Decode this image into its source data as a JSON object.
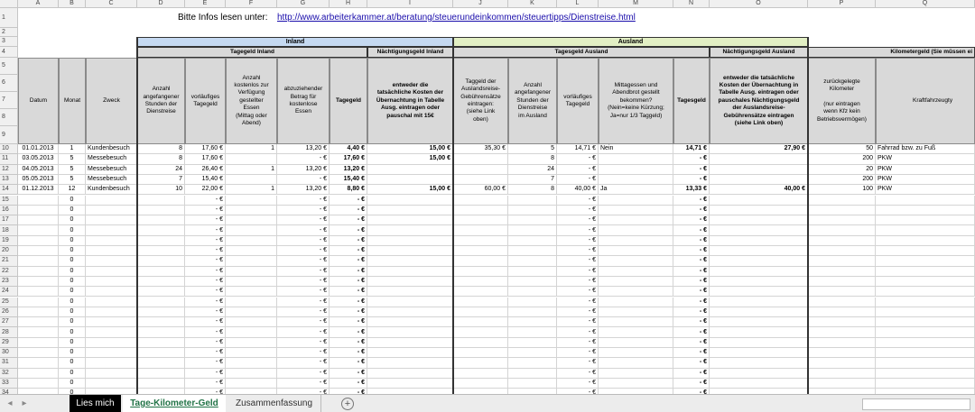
{
  "column_letters": [
    "A",
    "B",
    "C",
    "D",
    "E",
    "F",
    "G",
    "H",
    "I",
    "J",
    "K",
    "L",
    "M",
    "N",
    "O",
    "P",
    "Q"
  ],
  "row_numbers": [
    1,
    2,
    3,
    4,
    5,
    6,
    7,
    8,
    9,
    10,
    11,
    12,
    13,
    14,
    15,
    16,
    17,
    18,
    19,
    20,
    21,
    22,
    23,
    24,
    25,
    26,
    27,
    28,
    29,
    30,
    31,
    32,
    33,
    34
  ],
  "info": {
    "label": "Bitte Infos lesen unter:",
    "url": "http://www.arbeiterkammer.at/beratung/steuerundeinkommen/steuertipps/Dienstreise.html"
  },
  "groups": [
    "Inland",
    "Ausland"
  ],
  "subgroups": [
    "Tagegeld Inland",
    "Nächtigungsgeld Inland",
    "Tagesgeld Ausland",
    "Nächtigungsgeld Ausland",
    "Kilometergeld (Sie müssen ei"
  ],
  "columns": [
    "Datum",
    "Monat",
    "Zweck",
    "Anzahl\nangefangener\nStunden der\nDienstreise",
    "vorläufiges\nTagegeld",
    "Anzahl\nkostenlos zur\nVerfügung\ngestellter\nEssen\n(Mittag oder\nAbend)",
    "abzuziehender\nBetrag für\nkostenlose\nEssen",
    "Tagegeld",
    "entweder die\ntatsächliche Kosten der\nÜbernachtung in Tabelle\nAusg. eintragen oder\npauschal mit 15€",
    "Taggeld der\nAuslandsreise-\nGebührensätze\neintragen:\n(siehe Link\noben)",
    "Anzahl\nangefangener\nStunden der\nDienstreise\nim Ausland",
    "vorläufiges\nTagegeld",
    "Mittagessen und\nAbendbrot gestellt\nbekommen?\n(Nein=keine Kürzung;\nJa=nur 1/3 Taggeld)",
    "Tagesgeld",
    "entweder die tatsächliche\nKosten der Übernachtung in\nTabelle Ausg. eintragen oder\npauschales Nächtigungsgeld\nder Auslandsreise-\nGebührensätze eintragen\n(siehe Link oben)",
    "zurückgelegte\nKilometer\n\n(nur eintragen\nwenn Kfz kein\nBetriebsvermögen)",
    "Kraftfahrzeugty"
  ],
  "rows": [
    [
      "01.01.2013",
      "1",
      "Kundenbesuch",
      "8",
      "17,60 €",
      "1",
      "13,20 €",
      "4,40 €",
      "15,00 €",
      "35,30 €",
      "5",
      "14,71 €",
      "Nein",
      "14,71 €",
      "27,90 €",
      "50",
      "Fahrrad bzw. zu Fuß"
    ],
    [
      "03.05.2013",
      "5",
      "Messebesuch",
      "8",
      "17,60 €",
      "",
      "- €",
      "17,60 €",
      "15,00 €",
      "",
      "8",
      "- €",
      "",
      "- €",
      "",
      "200",
      "PKW"
    ],
    [
      "04.05.2013",
      "5",
      "Messebesuch",
      "24",
      "26,40 €",
      "1",
      "13,20 €",
      "13,20 €",
      "",
      "",
      "24",
      "- €",
      "",
      "- €",
      "",
      "20",
      "PKW"
    ],
    [
      "05.05.2013",
      "5",
      "Messebesuch",
      "7",
      "15,40 €",
      "",
      "- €",
      "15,40 €",
      "",
      "",
      "7",
      "- €",
      "",
      "- €",
      "",
      "200",
      "PKW"
    ],
    [
      "01.12.2013",
      "12",
      "Kundenbesuch",
      "10",
      "22,00 €",
      "1",
      "13,20 €",
      "8,80 €",
      "15,00 €",
      "60,00 €",
      "8",
      "40,00 €",
      "Ja",
      "13,33 €",
      "40,00 €",
      "100",
      "PKW"
    ],
    [
      "",
      "0",
      "",
      "",
      "- €",
      "",
      "- €",
      "- €",
      "",
      "",
      "",
      "- €",
      "",
      "- €",
      "",
      "",
      ""
    ],
    [
      "",
      "0",
      "",
      "",
      "- €",
      "",
      "- €",
      "- €",
      "",
      "",
      "",
      "- €",
      "",
      "- €",
      "",
      "",
      ""
    ],
    [
      "",
      "0",
      "",
      "",
      "- €",
      "",
      "- €",
      "- €",
      "",
      "",
      "",
      "- €",
      "",
      "- €",
      "",
      "",
      ""
    ],
    [
      "",
      "0",
      "",
      "",
      "- €",
      "",
      "- €",
      "- €",
      "",
      "",
      "",
      "- €",
      "",
      "- €",
      "",
      "",
      ""
    ],
    [
      "",
      "0",
      "",
      "",
      "- €",
      "",
      "- €",
      "- €",
      "",
      "",
      "",
      "- €",
      "",
      "- €",
      "",
      "",
      ""
    ],
    [
      "",
      "0",
      "",
      "",
      "- €",
      "",
      "- €",
      "- €",
      "",
      "",
      "",
      "- €",
      "",
      "- €",
      "",
      "",
      ""
    ],
    [
      "",
      "0",
      "",
      "",
      "- €",
      "",
      "- €",
      "- €",
      "",
      "",
      "",
      "- €",
      "",
      "- €",
      "",
      "",
      ""
    ],
    [
      "",
      "0",
      "",
      "",
      "- €",
      "",
      "- €",
      "- €",
      "",
      "",
      "",
      "- €",
      "",
      "- €",
      "",
      "",
      ""
    ],
    [
      "",
      "0",
      "",
      "",
      "- €",
      "",
      "- €",
      "- €",
      "",
      "",
      "",
      "- €",
      "",
      "- €",
      "",
      "",
      ""
    ],
    [
      "",
      "0",
      "",
      "",
      "- €",
      "",
      "- €",
      "- €",
      "",
      "",
      "",
      "- €",
      "",
      "- €",
      "",
      "",
      ""
    ],
    [
      "",
      "0",
      "",
      "",
      "- €",
      "",
      "- €",
      "- €",
      "",
      "",
      "",
      "- €",
      "",
      "- €",
      "",
      "",
      ""
    ],
    [
      "",
      "0",
      "",
      "",
      "- €",
      "",
      "- €",
      "- €",
      "",
      "",
      "",
      "- €",
      "",
      "- €",
      "",
      "",
      ""
    ],
    [
      "",
      "0",
      "",
      "",
      "- €",
      "",
      "- €",
      "- €",
      "",
      "",
      "",
      "- €",
      "",
      "- €",
      "",
      "",
      ""
    ],
    [
      "",
      "0",
      "",
      "",
      "- €",
      "",
      "- €",
      "- €",
      "",
      "",
      "",
      "- €",
      "",
      "- €",
      "",
      "",
      ""
    ],
    [
      "",
      "0",
      "",
      "",
      "- €",
      "",
      "- €",
      "- €",
      "",
      "",
      "",
      "- €",
      "",
      "- €",
      "",
      "",
      ""
    ],
    [
      "",
      "0",
      "",
      "",
      "- €",
      "",
      "- €",
      "- €",
      "",
      "",
      "",
      "- €",
      "",
      "- €",
      "",
      "",
      ""
    ],
    [
      "",
      "0",
      "",
      "",
      "- €",
      "",
      "- €",
      "- €",
      "",
      "",
      "",
      "- €",
      "",
      "- €",
      "",
      "",
      ""
    ],
    [
      "",
      "0",
      "",
      "",
      "- €",
      "",
      "- €",
      "- €",
      "",
      "",
      "",
      "- €",
      "",
      "- €",
      "",
      "",
      ""
    ],
    [
      "",
      "0",
      "",
      "",
      "- €",
      "",
      "- €",
      "- €",
      "",
      "",
      "",
      "- €",
      "",
      "- €",
      "",
      "",
      ""
    ],
    [
      "",
      "0",
      "",
      "",
      "- €",
      "",
      "- €",
      "- €",
      "",
      "",
      "",
      "- €",
      "",
      "- €",
      "",
      "",
      ""
    ]
  ],
  "tabs": [
    "Lies mich",
    "Tage-Kilometer-Geld",
    "Zusammenfassung"
  ],
  "add_tab": "+"
}
